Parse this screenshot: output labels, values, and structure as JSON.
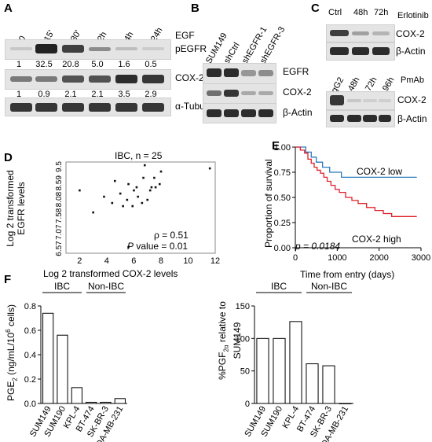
{
  "panels": {
    "A": {
      "label": "A",
      "timepoints": [
        "0",
        "15'",
        "30'",
        "2h",
        "4h",
        "24h"
      ],
      "treatment": "EGF",
      "rows": [
        {
          "name": "pEGFR",
          "values": [
            "1",
            "32.5",
            "20.8",
            "5.0",
            "1.6",
            "0.5"
          ],
          "intensity": [
            0.15,
            1.0,
            0.85,
            0.45,
            0.2,
            0.1
          ]
        },
        {
          "name": "COX-2",
          "values": [
            "1",
            "0.9",
            "2.1",
            "2.1",
            "3.5",
            "2.9"
          ],
          "intensity": [
            0.55,
            0.55,
            0.75,
            0.75,
            0.95,
            0.9
          ]
        },
        {
          "name": "α-Tubulin",
          "values": [],
          "intensity": [
            0.9,
            0.9,
            0.9,
            0.9,
            0.9,
            0.9
          ]
        }
      ]
    },
    "B": {
      "label": "B",
      "lanes": [
        "SUM149",
        "shCtrl",
        "shEGFR-1",
        "shEGFR-3"
      ],
      "rows": [
        "EGFR",
        "COX-2",
        "β-Actin"
      ]
    },
    "C": {
      "label": "C",
      "top": {
        "lanes": [
          "Ctrl",
          "48h",
          "72h"
        ],
        "treatment": "Erlotinib",
        "rows": [
          "COX-2",
          "β-Actin"
        ]
      },
      "bottom": {
        "lanes": [
          "IgG2",
          "48h",
          "72h",
          "96h"
        ],
        "treatment": "PmAb",
        "rows": [
          "COX-2",
          "β-Actin"
        ]
      }
    },
    "D": {
      "label": "D",
      "title": "IBC, n = 25",
      "ylabel": "Log 2 transformed EGFR levels",
      "xlabel": "Log 2 transformed COX-2 levels",
      "rho": "ρ = 0.51",
      "pvalue_prefix": "P",
      "pvalue_rest": " value = 0.01",
      "xticks": [
        "2",
        "4",
        "6",
        "8",
        "10",
        "12"
      ],
      "yticks": [
        "6.57",
        "7.07",
        "7.58",
        "8.08",
        "8.59",
        "9.5"
      ]
    },
    "E": {
      "label": "E",
      "ylabel": "Proportion of survival",
      "xlabel": "Time from entry (days)",
      "xticks": [
        "0",
        "1000",
        "2000",
        "3000"
      ],
      "yticks": [
        "0.00",
        "0.25",
        "0.50",
        "0.75",
        "1.00"
      ],
      "low_label": "COX-2 low",
      "high_label": "COX-2 high",
      "pvalue": "p = 0.0184"
    },
    "F": {
      "label": "F",
      "groups": [
        "IBC",
        "Non-IBC"
      ]
    }
  },
  "chart_data": [
    {
      "type": "scatter",
      "title": "IBC, n = 25",
      "xlabel": "Log 2 transformed COX-2 levels",
      "ylabel": "Log 2 transformed EGFR levels",
      "xlim": [
        1,
        12
      ],
      "ylim": [
        6.3,
        9.2
      ],
      "x": [
        2.0,
        3.0,
        3.8,
        4.4,
        4.6,
        5.0,
        5.2,
        5.5,
        5.6,
        5.9,
        6.0,
        6.2,
        6.3,
        6.6,
        6.7,
        6.8,
        7.0,
        7.2,
        7.3,
        7.5,
        7.6,
        7.9,
        8.0,
        5.6,
        11.6
      ],
      "y": [
        8.3,
        7.6,
        8.1,
        7.9,
        8.6,
        8.2,
        7.8,
        8.0,
        8.5,
        7.8,
        8.3,
        8.4,
        8.1,
        7.9,
        8.7,
        9.1,
        8.0,
        8.3,
        8.4,
        8.7,
        8.4,
        8.5,
        8.9,
        6.5,
        9.0
      ]
    },
    {
      "type": "line",
      "title": "",
      "xlabel": "Time from entry (days)",
      "ylabel": "Proportion of survival",
      "xlim": [
        0,
        3000
      ],
      "ylim": [
        0,
        1
      ],
      "series": [
        {
          "name": "COX-2 low",
          "color": "#2b7bbd",
          "x": [
            0,
            150,
            250,
            380,
            500,
            650,
            820,
            1100,
            1500,
            2900
          ],
          "y": [
            1.0,
            1.0,
            0.95,
            0.9,
            0.85,
            0.8,
            0.75,
            0.7,
            0.7,
            0.7
          ]
        },
        {
          "name": "COX-2 high",
          "color": "#e0202a",
          "x": [
            0,
            120,
            220,
            300,
            380,
            450,
            520,
            600,
            680,
            760,
            850,
            950,
            1050,
            1200,
            1350,
            1500,
            1700,
            1900,
            2100,
            2300,
            2900
          ],
          "y": [
            1.0,
            0.97,
            0.94,
            0.88,
            0.84,
            0.8,
            0.77,
            0.74,
            0.7,
            0.66,
            0.62,
            0.58,
            0.55,
            0.5,
            0.47,
            0.44,
            0.4,
            0.37,
            0.34,
            0.31,
            0.31
          ]
        }
      ]
    },
    {
      "type": "bar",
      "title": "",
      "ylabel": "PGE2 (ng/mL/10^6 cells)",
      "categories": [
        "SUM149",
        "SUM190",
        "KPL-4",
        "BT-474",
        "SK-BR-3",
        "MDA-MB-231"
      ],
      "values": [
        0.74,
        0.56,
        0.13,
        0.01,
        0.01,
        0.04
      ],
      "ylim": [
        0,
        0.8
      ],
      "yticks": [
        "0.0",
        "0.2",
        "0.4",
        "0.6",
        "0.8"
      ]
    },
    {
      "type": "bar",
      "title": "",
      "ylabel": "%PGF2α relative to SUM149",
      "categories": [
        "SUM149",
        "SUM190",
        "KPL-4",
        "BT-474",
        "SK-BR-3",
        "MDA-MB-231"
      ],
      "values": [
        100,
        100,
        126,
        61,
        58,
        0
      ],
      "ylim": [
        0,
        150
      ],
      "yticks": [
        "0",
        "50",
        "100",
        "150"
      ]
    }
  ]
}
